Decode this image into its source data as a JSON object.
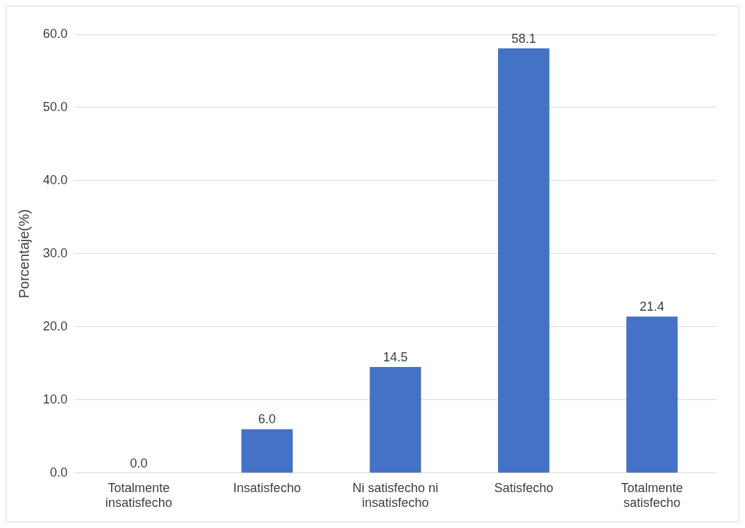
{
  "chart_data": {
    "type": "bar",
    "ylabel": "Porcentaje(%)",
    "categories": [
      "Totalmente insatisfecho",
      "Insatisfecho",
      "Ni satisfecho ni insatisfecho",
      "Satisfecho",
      "Totalmente satisfecho"
    ],
    "values": [
      0.0,
      6.0,
      14.5,
      58.1,
      21.4
    ],
    "value_labels": [
      "0.0",
      "6.0",
      "14.5",
      "58.1",
      "21.4"
    ],
    "color": "#4472c4",
    "ylim": [
      0,
      60
    ],
    "yticks": [
      {
        "value": 0,
        "label": "0.0"
      },
      {
        "value": 10,
        "label": "10.0"
      },
      {
        "value": 20,
        "label": "20.0"
      },
      {
        "value": 30,
        "label": "30.0"
      },
      {
        "value": 40,
        "label": "40.0"
      },
      {
        "value": 50,
        "label": "50.0"
      },
      {
        "value": 60,
        "label": "60.0"
      }
    ],
    "grid": "y",
    "legend": false
  }
}
